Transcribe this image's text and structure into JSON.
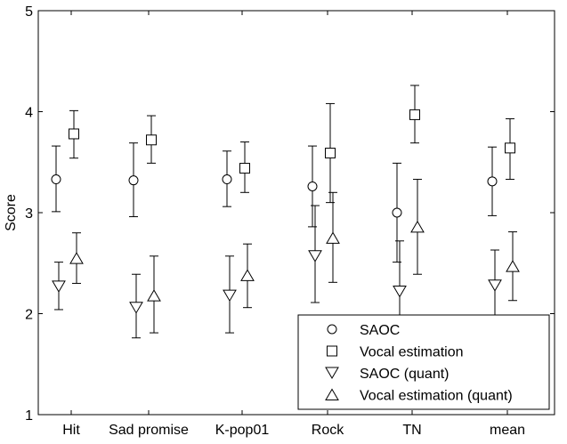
{
  "chart_data": {
    "type": "scatter",
    "ylabel": "Score",
    "xlabel": "",
    "title": "",
    "ylim": [
      1,
      5
    ],
    "yticks": [
      1,
      2,
      3,
      4,
      5
    ],
    "categories": [
      "Hit",
      "Sad promise",
      "K-pop01",
      "Rock",
      "TN",
      "mean"
    ],
    "grid": false,
    "legend_position": "bottom-right",
    "series": [
      {
        "name": "SAOC",
        "marker": "circle",
        "values": [
          3.33,
          3.32,
          3.33,
          3.26,
          3.0,
          3.31
        ],
        "err_low": [
          3.01,
          2.96,
          3.06,
          2.86,
          2.51,
          2.97
        ],
        "err_high": [
          3.66,
          3.69,
          3.61,
          3.66,
          3.49,
          3.65
        ]
      },
      {
        "name": "Vocal estimation",
        "marker": "square",
        "values": [
          3.78,
          3.72,
          3.44,
          3.59,
          3.97,
          3.64
        ],
        "err_low": [
          3.54,
          3.49,
          3.2,
          3.1,
          3.69,
          3.33
        ],
        "err_high": [
          4.01,
          3.96,
          3.7,
          4.08,
          4.26,
          3.93
        ]
      },
      {
        "name": "SAOC (quant)",
        "marker": "triangle-down",
        "values": [
          2.27,
          2.06,
          2.18,
          2.57,
          2.22,
          2.28
        ],
        "err_low": [
          2.04,
          1.76,
          1.81,
          2.11,
          1.85,
          1.9
        ],
        "err_high": [
          2.51,
          2.39,
          2.57,
          3.07,
          2.72,
          2.63
        ]
      },
      {
        "name": "Vocal estimation (quant)",
        "marker": "triangle-up",
        "values": [
          2.55,
          2.18,
          2.38,
          2.75,
          2.86,
          2.47
        ],
        "err_low": [
          2.3,
          1.81,
          2.06,
          2.31,
          2.39,
          2.13
        ],
        "err_high": [
          2.8,
          2.57,
          2.69,
          3.2,
          3.33,
          2.81
        ]
      }
    ]
  }
}
